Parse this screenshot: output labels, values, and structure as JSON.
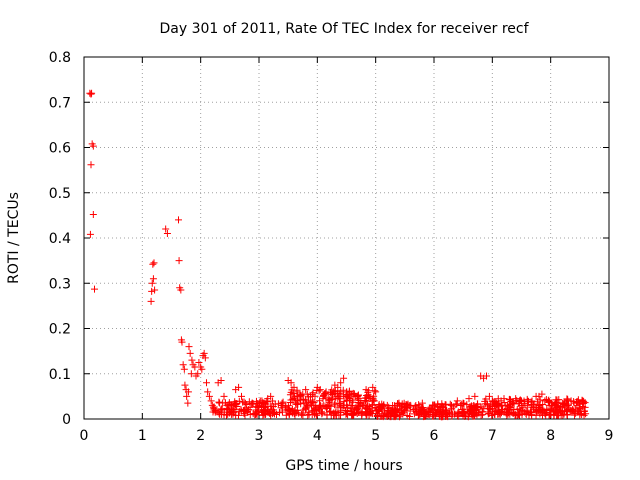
{
  "chart_data": {
    "type": "scatter",
    "title": "Day 301 of 2011, Rate Of TEC Index for receiver recf",
    "xlabel": "GPS time / hours",
    "ylabel": "ROTI / TECUs",
    "xlim": [
      0,
      9
    ],
    "ylim": [
      0,
      0.8
    ],
    "xticks": [
      0,
      1,
      2,
      3,
      4,
      5,
      6,
      7,
      8,
      9
    ],
    "yticks": [
      0,
      0.1,
      0.2,
      0.3,
      0.4,
      0.5,
      0.6,
      0.7,
      0.8
    ],
    "x_tick_labels": [
      "0",
      "1",
      "2",
      "3",
      "4",
      "5",
      "6",
      "7",
      "8",
      "9"
    ],
    "y_tick_labels": [
      "0",
      "0.1",
      "0.2",
      "0.3",
      "0.4",
      "0.5",
      "0.6",
      "0.7",
      "0.8"
    ],
    "grid": true,
    "marker": "+",
    "color": "#ff0000",
    "series": [
      {
        "name": "recf",
        "points": [
          [
            0.1,
            0.72
          ],
          [
            0.12,
            0.718
          ],
          [
            0.13,
            0.72
          ],
          [
            0.14,
            0.608
          ],
          [
            0.16,
            0.603
          ],
          [
            0.12,
            0.562
          ],
          [
            0.16,
            0.452
          ],
          [
            0.11,
            0.408
          ],
          [
            0.18,
            0.287
          ],
          [
            1.15,
            0.26
          ],
          [
            1.16,
            0.282
          ],
          [
            1.17,
            0.3
          ],
          [
            1.18,
            0.342
          ],
          [
            1.2,
            0.345
          ],
          [
            1.19,
            0.31
          ],
          [
            1.21,
            0.285
          ],
          [
            1.4,
            0.42
          ],
          [
            1.43,
            0.41
          ],
          [
            1.62,
            0.44
          ],
          [
            1.63,
            0.35
          ],
          [
            1.64,
            0.29
          ],
          [
            1.66,
            0.285
          ],
          [
            1.67,
            0.175
          ],
          [
            1.68,
            0.17
          ],
          [
            1.7,
            0.12
          ],
          [
            1.72,
            0.11
          ],
          [
            1.73,
            0.075
          ],
          [
            1.75,
            0.065
          ],
          [
            1.76,
            0.05
          ],
          [
            1.78,
            0.035
          ],
          [
            1.79,
            0.06
          ],
          [
            1.8,
            0.16
          ],
          [
            1.82,
            0.145
          ],
          [
            1.84,
            0.1
          ],
          [
            1.85,
            0.13
          ],
          [
            1.87,
            0.12
          ],
          [
            1.9,
            0.115
          ],
          [
            1.92,
            0.095
          ],
          [
            1.95,
            0.1
          ],
          [
            1.97,
            0.125
          ],
          [
            2.0,
            0.115
          ],
          [
            2.02,
            0.11
          ],
          [
            2.04,
            0.14
          ],
          [
            2.06,
            0.145
          ],
          [
            2.08,
            0.135
          ],
          [
            2.1,
            0.08
          ],
          [
            2.12,
            0.06
          ],
          [
            2.15,
            0.05
          ],
          [
            2.18,
            0.04
          ],
          [
            2.2,
            0.03
          ],
          [
            2.23,
            0.02
          ],
          [
            2.25,
            0.015
          ],
          [
            2.3,
            0.08
          ],
          [
            2.35,
            0.085
          ],
          [
            2.4,
            0.05
          ],
          [
            2.45,
            0.03
          ],
          [
            2.5,
            0.015
          ],
          [
            2.55,
            0.02
          ],
          [
            2.6,
            0.065
          ],
          [
            2.65,
            0.07
          ],
          [
            2.7,
            0.05
          ],
          [
            2.75,
            0.02
          ],
          [
            2.8,
            0.015
          ],
          [
            2.85,
            0.01
          ],
          [
            2.9,
            0.012
          ],
          [
            2.95,
            0.02
          ],
          [
            3.0,
            0.03
          ],
          [
            3.05,
            0.04
          ],
          [
            3.1,
            0.035
          ],
          [
            3.15,
            0.045
          ],
          [
            3.2,
            0.05
          ],
          [
            3.25,
            0.02
          ],
          [
            3.3,
            0.01
          ],
          [
            3.35,
            0.015
          ],
          [
            3.4,
            0.03
          ],
          [
            3.45,
            0.025
          ],
          [
            3.5,
            0.085
          ],
          [
            3.55,
            0.08
          ],
          [
            3.6,
            0.07
          ],
          [
            3.65,
            0.06
          ],
          [
            3.7,
            0.05
          ],
          [
            3.75,
            0.055
          ],
          [
            3.8,
            0.065
          ],
          [
            3.85,
            0.04
          ],
          [
            3.9,
            0.03
          ],
          [
            3.95,
            0.02
          ],
          [
            4.0,
            0.07
          ],
          [
            4.05,
            0.065
          ],
          [
            4.1,
            0.05
          ],
          [
            4.15,
            0.06
          ],
          [
            4.2,
            0.03
          ],
          [
            4.25,
            0.055
          ],
          [
            4.3,
            0.075
          ],
          [
            4.35,
            0.07
          ],
          [
            4.4,
            0.08
          ],
          [
            4.45,
            0.09
          ],
          [
            4.5,
            0.06
          ],
          [
            4.55,
            0.04
          ],
          [
            4.6,
            0.03
          ],
          [
            4.65,
            0.05
          ],
          [
            4.7,
            0.045
          ],
          [
            4.75,
            0.035
          ],
          [
            4.8,
            0.03
          ],
          [
            4.85,
            0.025
          ],
          [
            4.9,
            0.02
          ],
          [
            4.95,
            0.07
          ],
          [
            5.0,
            0.06
          ],
          [
            5.05,
            0.02
          ],
          [
            5.1,
            0.025
          ],
          [
            5.2,
            0.03
          ],
          [
            5.3,
            0.02
          ],
          [
            5.4,
            0.035
          ],
          [
            5.5,
            0.025
          ],
          [
            5.6,
            0.03
          ],
          [
            5.7,
            0.015
          ],
          [
            5.8,
            0.035
          ],
          [
            5.9,
            0.02
          ],
          [
            6.0,
            0.03
          ],
          [
            6.1,
            0.025
          ],
          [
            6.2,
            0.015
          ],
          [
            6.3,
            0.03
          ],
          [
            6.4,
            0.04
          ],
          [
            6.5,
            0.035
          ],
          [
            6.6,
            0.045
          ],
          [
            6.7,
            0.05
          ],
          [
            6.8,
            0.095
          ],
          [
            6.85,
            0.09
          ],
          [
            6.9,
            0.095
          ],
          [
            6.95,
            0.05
          ],
          [
            7.0,
            0.04
          ],
          [
            7.05,
            0.03
          ],
          [
            7.1,
            0.02
          ],
          [
            7.15,
            0.04
          ],
          [
            7.2,
            0.045
          ],
          [
            7.3,
            0.02
          ],
          [
            7.4,
            0.045
          ],
          [
            7.5,
            0.04
          ],
          [
            7.6,
            0.03
          ],
          [
            7.7,
            0.025
          ],
          [
            7.75,
            0.05
          ],
          [
            7.8,
            0.05
          ],
          [
            7.85,
            0.055
          ],
          [
            7.9,
            0.04
          ],
          [
            8.0,
            0.02
          ],
          [
            8.1,
            0.03
          ],
          [
            8.2,
            0.025
          ],
          [
            8.3,
            0.03
          ],
          [
            8.35,
            0.04
          ],
          [
            8.4,
            0.035
          ],
          [
            8.45,
            0.03
          ],
          [
            8.5,
            0.025
          ],
          [
            8.55,
            0.04
          ]
        ],
        "dense_regions": [
          {
            "x_range": [
              2.2,
              3.5
            ],
            "y_range": [
              0.008,
              0.04
            ],
            "count": 140
          },
          {
            "x_range": [
              3.5,
              5.0
            ],
            "y_range": [
              0.008,
              0.065
            ],
            "count": 260
          },
          {
            "x_range": [
              5.0,
              6.8
            ],
            "y_range": [
              0.005,
              0.035
            ],
            "count": 260
          },
          {
            "x_range": [
              6.8,
              8.6
            ],
            "y_range": [
              0.008,
              0.045
            ],
            "count": 260
          }
        ]
      }
    ]
  }
}
